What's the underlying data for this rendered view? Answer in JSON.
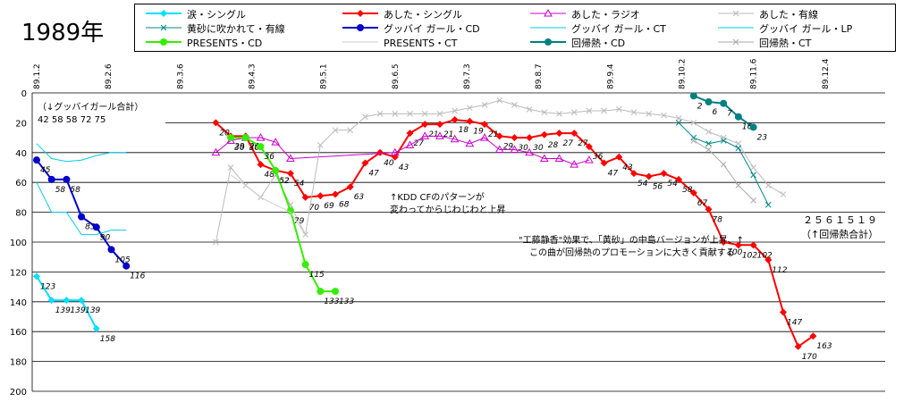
{
  "chart_data": {
    "type": "line",
    "title": "1989年",
    "y_axis": {
      "min": 0,
      "max": 200,
      "step": 20,
      "inverted": true,
      "ticks": [
        0,
        20,
        40,
        60,
        80,
        100,
        120,
        140,
        160,
        180,
        200
      ]
    },
    "x_ticks": [
      "89.1.2",
      "89.2.6",
      "89.3.6",
      "89.4.3",
      "89.5.1",
      "89.6.5",
      "89.7.3",
      "89.8.7",
      "89.9.4",
      "89.10.2",
      "89.11.6",
      "89.12.4"
    ],
    "grid": "horizontal",
    "legend_position": "top",
    "series": [
      {
        "name": "涙・シングル",
        "color": "#00e0ff",
        "marker": "diamond-filled",
        "width": 2,
        "labels": true,
        "x": [
          0,
          1,
          2,
          3,
          4
        ],
        "y": [
          123,
          139,
          139,
          139,
          158
        ]
      },
      {
        "name": "あした・シングル",
        "color": "#ff0000",
        "marker": "diamond-filled",
        "width": 2,
        "labels": true,
        "x": [
          12,
          13,
          14,
          15,
          16,
          17,
          18,
          19,
          20,
          21,
          22,
          23,
          24,
          25,
          26,
          27,
          28,
          29,
          30,
          31,
          32,
          33,
          34,
          35,
          36,
          37,
          38,
          39,
          40,
          41,
          42,
          43,
          44,
          45,
          46,
          47,
          48,
          49,
          50,
          51,
          52,
          53,
          54,
          55,
          56
        ],
        "y": [
          20,
          29,
          29,
          48,
          52,
          54,
          70,
          69,
          68,
          63,
          47,
          40,
          43,
          27,
          21,
          21,
          18,
          19,
          21,
          29,
          30,
          30,
          28,
          27,
          27,
          36,
          47,
          43,
          54,
          56,
          54,
          58,
          67,
          78,
          100,
          102,
          102,
          112,
          147,
          170,
          163,
          null,
          null,
          null,
          null
        ]
      },
      {
        "name": "あした・ラジオ",
        "color": "#cc00cc",
        "marker": "triangle-open",
        "width": 1,
        "labels": false,
        "x": [
          12,
          13,
          14,
          15,
          16,
          17,
          24,
          25,
          26,
          27,
          28,
          29,
          30,
          31,
          32,
          33,
          34,
          35,
          36,
          37,
          38,
          39,
          40,
          41,
          42
        ],
        "y": [
          40,
          32,
          30,
          30,
          33,
          44,
          40,
          35,
          29,
          29,
          31,
          34,
          30,
          38,
          38,
          40,
          44,
          44,
          48,
          45,
          null,
          null,
          null,
          null,
          null
        ]
      },
      {
        "name": "あした・有線",
        "color": "#bbbbbb",
        "marker": "x",
        "width": 1,
        "labels": false,
        "x": [
          12,
          13,
          14,
          15,
          16,
          17,
          18,
          19,
          20,
          21,
          22,
          23,
          24,
          25,
          26,
          27,
          28,
          29,
          30,
          31,
          32,
          33,
          34,
          35,
          36,
          37,
          38,
          39,
          40,
          41,
          42,
          43,
          44,
          45,
          46,
          47,
          48,
          49,
          50
        ],
        "y": [
          100,
          50,
          62,
          70,
          55,
          75,
          95,
          35,
          25,
          25,
          16,
          14,
          14,
          14,
          14,
          14,
          12,
          10,
          8,
          5,
          8,
          11,
          13,
          14,
          13,
          12,
          12,
          11,
          13,
          14,
          15,
          17,
          20,
          26,
          30,
          34,
          50,
          62,
          68
        ]
      },
      {
        "name": "黄砂に吹かれて・有線",
        "color": "#008888",
        "marker": "x",
        "width": 1,
        "labels": false,
        "x": [
          43,
          44,
          45,
          46,
          47,
          48,
          49
        ],
        "y": [
          20,
          30,
          34,
          32,
          37,
          55,
          75
        ]
      },
      {
        "name": "グッバイ ガール・CD",
        "color": "#0000cc",
        "marker": "circle-filled",
        "width": 2,
        "labels": true,
        "x": [
          0,
          1,
          2,
          3,
          4,
          5,
          6
        ],
        "y": [
          45,
          58,
          58,
          83,
          90,
          105,
          116
        ]
      },
      {
        "name": "グッバイ ガール・CT",
        "color": "#00ccee",
        "marker": "none",
        "width": 1,
        "labels": false,
        "x": [
          0,
          1,
          2,
          3,
          4,
          5,
          6
        ],
        "y": [
          34,
          44,
          46,
          45,
          42,
          40,
          40
        ]
      },
      {
        "name": "グッバイ ガール・LP",
        "color": "#00ccee",
        "marker": "none",
        "width": 1,
        "labels": false,
        "x": [
          0,
          1,
          2,
          3,
          4,
          5,
          6
        ],
        "y": [
          60,
          80,
          80,
          95,
          95,
          92,
          92
        ]
      },
      {
        "name": "PRESENTS・CD",
        "color": "#33ee00",
        "marker": "circle-filled",
        "width": 2,
        "labels": true,
        "x": [
          13,
          14,
          15,
          16,
          17,
          18,
          19,
          20
        ],
        "y": [
          30,
          30,
          36,
          52,
          79,
          115,
          133,
          133
        ]
      },
      {
        "name": "PRESENTS・CT",
        "color": "#cccccc",
        "marker": "none",
        "width": 1,
        "labels": false,
        "x": [
          13,
          14,
          15,
          16,
          17,
          18
        ],
        "y": [
          55,
          62,
          70,
          75,
          80,
          95
        ]
      },
      {
        "name": "回帰熱・CD",
        "color": "#008080",
        "marker": "circle-filled",
        "width": 2,
        "labels": true,
        "x": [
          44,
          45,
          46,
          47,
          48
        ],
        "y": [
          2,
          6,
          7,
          16,
          23
        ]
      },
      {
        "name": "回帰熱・CT",
        "color": "#aaaaaa",
        "marker": "x",
        "width": 1,
        "labels": false,
        "x": [
          44,
          45,
          46,
          47,
          48
        ],
        "y": [
          32,
          38,
          48,
          62,
          72
        ]
      }
    ],
    "annotations": [
      {
        "text": "（↓グッバイガール合計）"
      },
      {
        "text": "42 58 58 72 75"
      },
      {
        "text": "↑KDD CFのパターンが"
      },
      {
        "text": "変わってからじわじわと上昇"
      },
      {
        "text": "\"工藤静香\"効果で、「黄砂」の中島バージョンが上昇、↑"
      },
      {
        "text": "この曲が回帰熱のプロモーションに大きく貢献する"
      },
      {
        "text": "２５６１５１９"
      },
      {
        "text": "（↑回帰熱合計）"
      }
    ]
  }
}
